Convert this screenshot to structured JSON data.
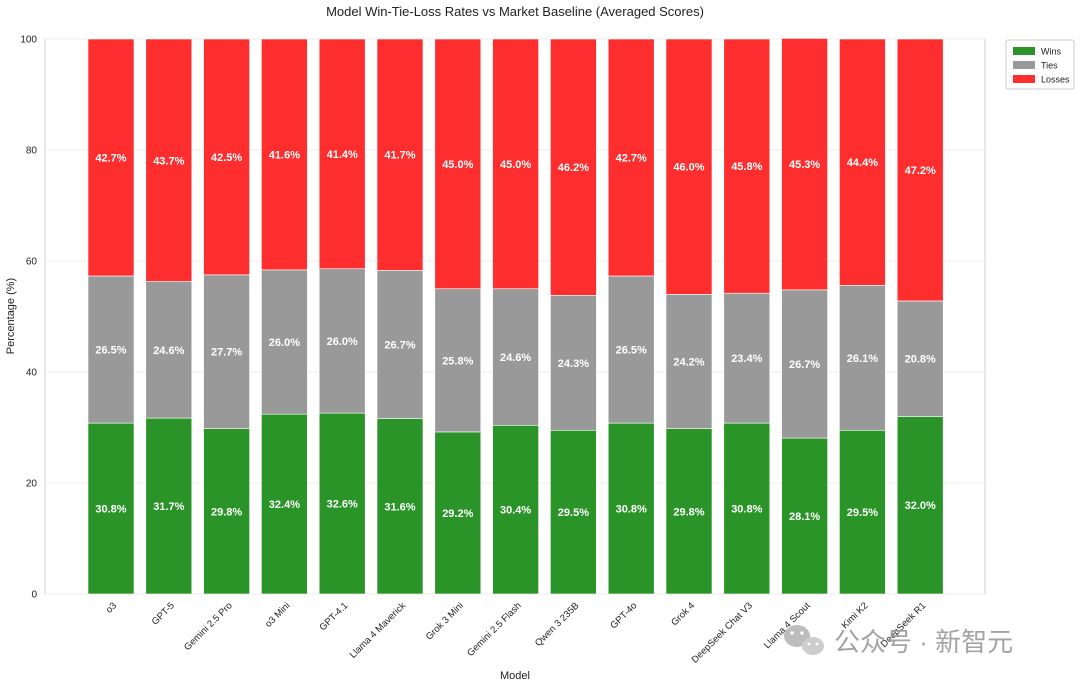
{
  "chart_data": {
    "type": "bar",
    "stacked": true,
    "title": "Model Win-Tie-Loss Rates vs Market Baseline (Averaged Scores)",
    "xlabel": "Model",
    "ylabel": "Percentage (%)",
    "ylim": [
      0,
      100
    ],
    "yticks": [
      "0",
      "20",
      "40",
      "60",
      "80",
      "100"
    ],
    "grid": true,
    "legend_position": "top-right",
    "categories": [
      "o3",
      "GPT-5",
      "Gemini 2.5 Pro",
      "o3 Mini",
      "GPT-4.1",
      "Llama 4 Maverick",
      "Grok 3 Mini",
      "Gemini 2.5 Flash",
      "Qwen 3 235B",
      "GPT-4o",
      "Grok 4",
      "DeepSeek Chat V3",
      "Llama 4 Scout",
      "Kimi K2",
      "DeepSeek R1"
    ],
    "series": [
      {
        "name": "Wins",
        "color": "#2a9428",
        "values": [
          30.8,
          31.7,
          29.8,
          32.4,
          32.6,
          31.6,
          29.2,
          30.4,
          29.5,
          30.8,
          29.8,
          30.8,
          28.1,
          29.5,
          32.0
        ]
      },
      {
        "name": "Ties",
        "color": "#999999",
        "values": [
          26.5,
          24.6,
          27.7,
          26.0,
          26.0,
          26.7,
          25.8,
          24.6,
          24.3,
          26.5,
          24.2,
          23.4,
          26.7,
          26.1,
          20.8
        ]
      },
      {
        "name": "Losses",
        "color": "#ff2e2e",
        "values": [
          42.7,
          43.7,
          42.5,
          41.6,
          41.4,
          41.7,
          45.0,
          45.0,
          46.2,
          42.7,
          46.0,
          45.8,
          45.3,
          44.4,
          47.2
        ]
      }
    ]
  },
  "watermark": {
    "icon": "wechat-icon",
    "text": "公众号 · 新智元"
  }
}
